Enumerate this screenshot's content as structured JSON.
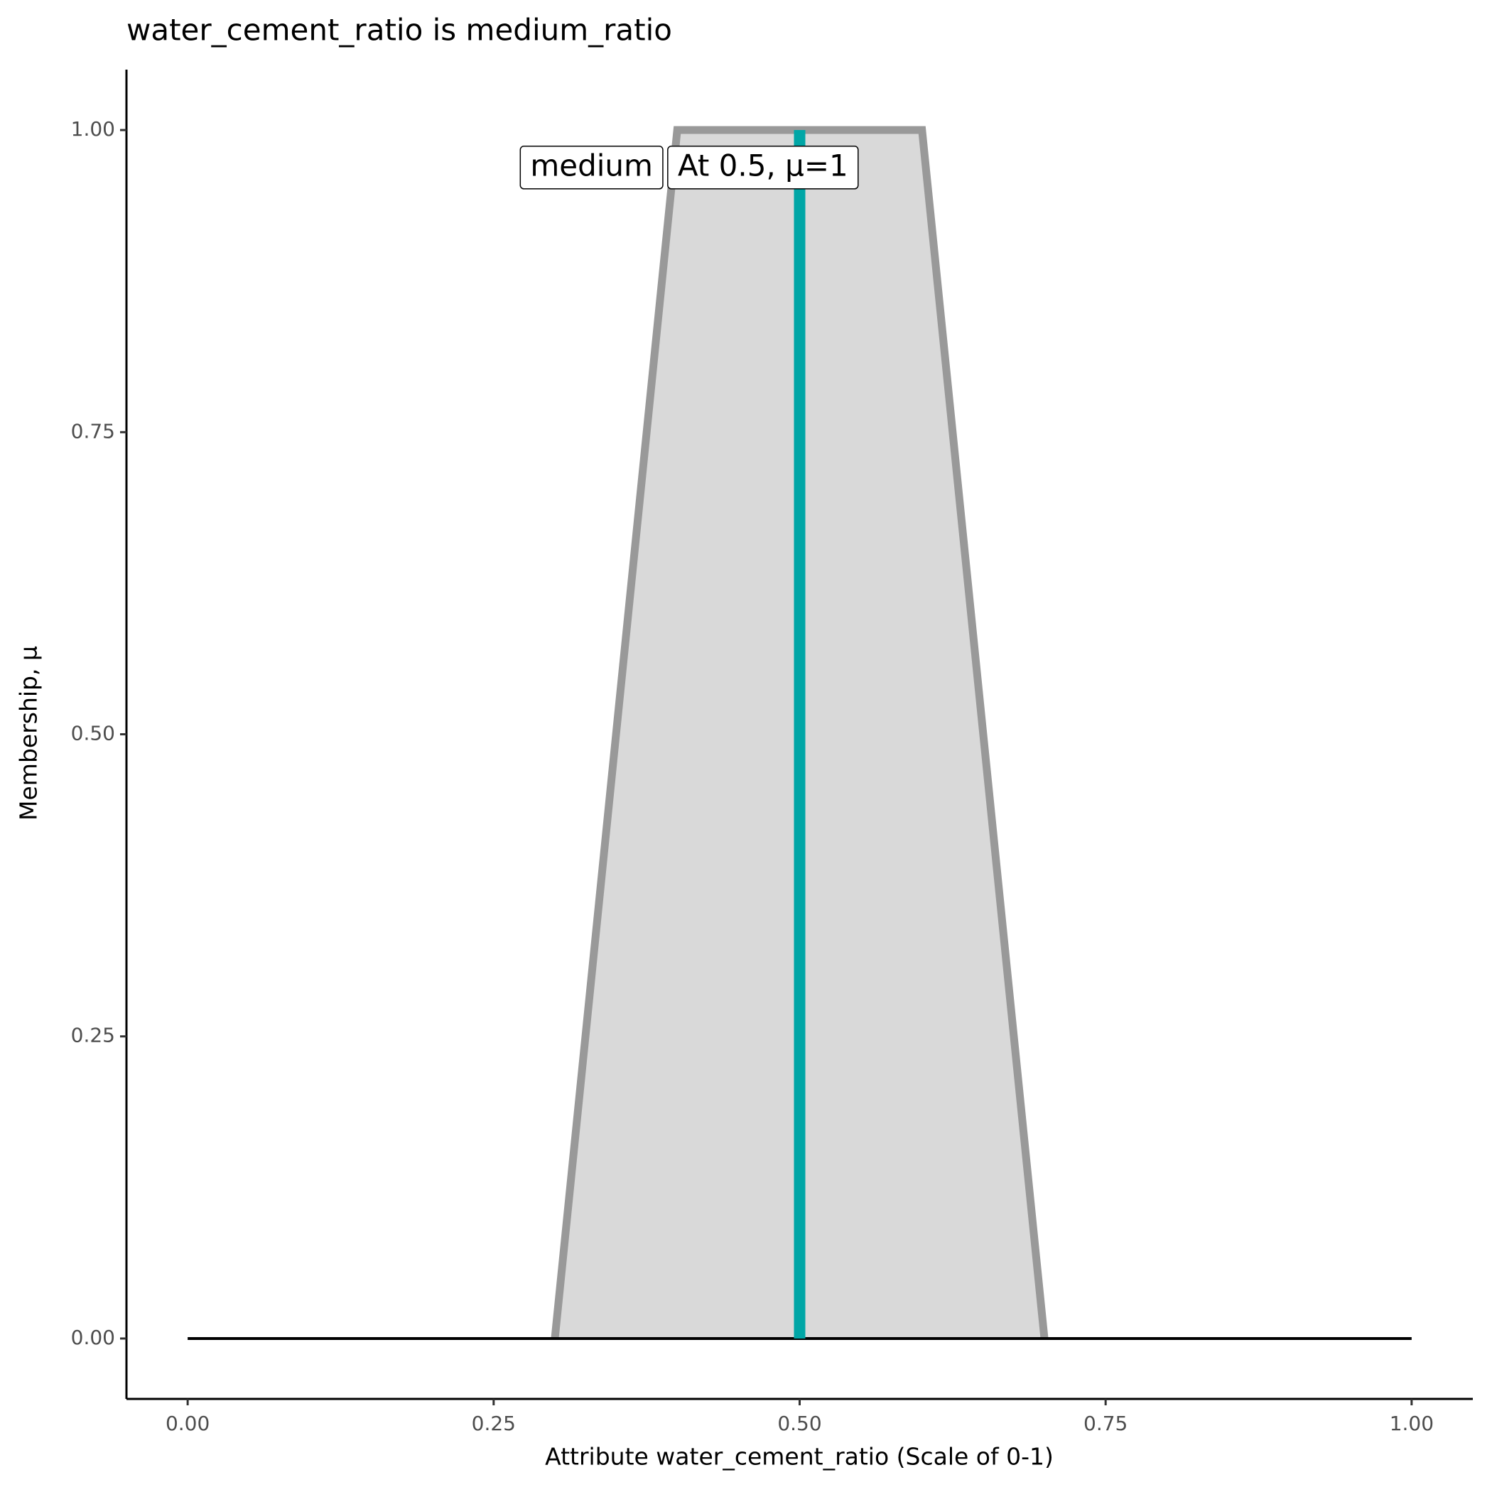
{
  "chart_data": {
    "type": "line",
    "title": "water_cement_ratio is medium_ratio",
    "xlabel": "Attribute water_cement_ratio (Scale of 0-1)",
    "ylabel": "Membership, μ",
    "xlim": [
      -0.05,
      1.05
    ],
    "ylim": [
      -0.05,
      1.05
    ],
    "xticks": [
      {
        "value": 0,
        "label": "0.00"
      },
      {
        "value": 0.25,
        "label": "0.25"
      },
      {
        "value": 0.5,
        "label": "0.50"
      },
      {
        "value": 0.75,
        "label": "0.75"
      },
      {
        "value": 1,
        "label": "1.00"
      }
    ],
    "yticks": [
      {
        "value": 0,
        "label": "0.00"
      },
      {
        "value": 0.25,
        "label": "0.25"
      },
      {
        "value": 0.5,
        "label": "0.50"
      },
      {
        "value": 0.75,
        "label": "0.75"
      },
      {
        "value": 1,
        "label": "1.00"
      }
    ],
    "series": [
      {
        "name": "medium",
        "x": [
          0.3,
          0.4,
          0.6,
          0.7
        ],
        "values": [
          0,
          1,
          1,
          0
        ],
        "color": "#999999",
        "fill": "#d9d9d9"
      },
      {
        "x": [
          0,
          1
        ],
        "values": [
          0,
          0
        ],
        "color": "#000000"
      }
    ],
    "marker": {
      "x": 0.5,
      "value": 1,
      "label": "At 0.5, μ=1",
      "color": "#00a6a6"
    }
  }
}
